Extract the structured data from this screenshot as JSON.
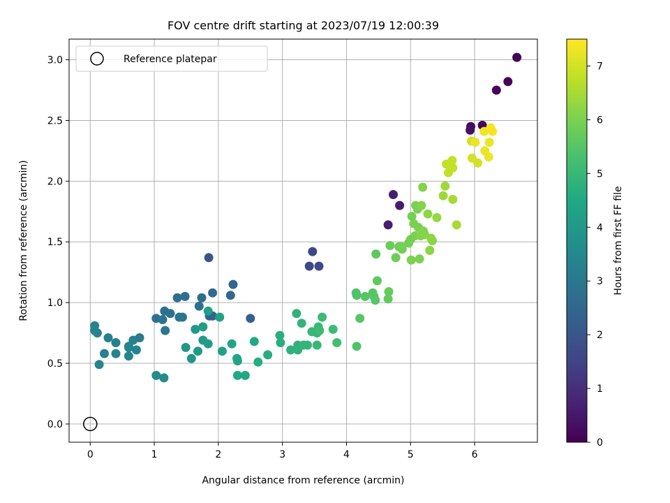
{
  "chart_data": {
    "type": "scatter",
    "title": "FOV centre drift starting at 2023/07/19 12:00:39",
    "xlabel": "Angular distance from reference (arcmin)",
    "ylabel": "Rotation from reference (arcmin)",
    "xlim": [
      -0.33,
      6.98
    ],
    "ylim": [
      -0.15,
      3.17
    ],
    "xticks": [
      0,
      1,
      2,
      3,
      4,
      5,
      6
    ],
    "xtick_labels": [
      "0",
      "1",
      "2",
      "3",
      "4",
      "5",
      "6"
    ],
    "yticks": [
      0.0,
      0.5,
      1.0,
      1.5,
      2.0,
      2.5,
      3.0
    ],
    "ytick_labels": [
      "0.0",
      "0.5",
      "1.0",
      "1.5",
      "2.0",
      "2.5",
      "3.0"
    ],
    "grid": true,
    "legend": {
      "position": "top-left",
      "entries": [
        "Reference platepar"
      ]
    },
    "reference_point": {
      "label": "Reference platepar",
      "x": 0,
      "y": 0
    },
    "colorbar": {
      "label": "Hours from first FF file",
      "colormap": "viridis",
      "range": [
        0,
        7.5
      ],
      "ticks": [
        0,
        1,
        2,
        3,
        4,
        5,
        6,
        7
      ],
      "tick_labels": [
        "0",
        "1",
        "2",
        "3",
        "4",
        "5",
        "6",
        "7"
      ],
      "colors": [
        "#440154",
        "#482475",
        "#414487",
        "#355f8d",
        "#2a788e",
        "#21918c",
        "#22a884",
        "#44bf70",
        "#7ad151",
        "#bddf26",
        "#fde725"
      ]
    },
    "series": [
      {
        "points": [
          [
            6.66,
            3.02,
            0.1
          ],
          [
            6.52,
            2.82,
            0.1
          ],
          [
            6.34,
            2.75,
            0.1
          ],
          [
            6.12,
            2.46,
            0.15
          ],
          [
            5.94,
            2.45,
            0.2
          ],
          [
            5.93,
            2.42,
            0.3
          ],
          [
            4.73,
            1.89,
            0.6
          ],
          [
            4.83,
            1.8,
            0.6
          ],
          [
            4.65,
            1.64,
            0.65
          ],
          [
            3.47,
            1.42,
            1.6
          ],
          [
            3.42,
            1.3,
            1.6
          ],
          [
            3.57,
            1.3,
            1.6
          ],
          [
            1.85,
            1.37,
            2.0
          ],
          [
            2.5,
            0.87,
            2.3
          ],
          [
            1.86,
            0.89,
            2.4
          ],
          [
            1.91,
            0.89,
            2.4
          ],
          [
            2.23,
            1.15,
            2.5
          ],
          [
            2.19,
            1.06,
            2.5
          ],
          [
            1.91,
            1.08,
            2.6
          ],
          [
            1.36,
            1.04,
            2.7
          ],
          [
            1.48,
            1.05,
            2.7
          ],
          [
            1.74,
            1.04,
            2.7
          ],
          [
            1.7,
            0.97,
            2.8
          ],
          [
            1.03,
            0.87,
            2.8
          ],
          [
            1.16,
            0.93,
            2.8
          ],
          [
            1.25,
            0.91,
            2.8
          ],
          [
            1.13,
            0.86,
            2.9
          ],
          [
            1.44,
            0.88,
            2.9
          ],
          [
            1.39,
            0.88,
            2.9
          ],
          [
            1.17,
            0.77,
            3.0
          ],
          [
            0.77,
            0.71,
            3.1
          ],
          [
            0.67,
            0.69,
            3.2
          ],
          [
            0.6,
            0.64,
            3.2
          ],
          [
            0.28,
            0.71,
            3.2
          ],
          [
            0.4,
            0.67,
            3.2
          ],
          [
            0.22,
            0.58,
            3.3
          ],
          [
            0.07,
            0.81,
            3.3
          ],
          [
            0.11,
            0.75,
            3.3
          ],
          [
            0.07,
            0.77,
            3.3
          ],
          [
            0.14,
            0.49,
            3.4
          ],
          [
            0.4,
            0.58,
            3.4
          ],
          [
            0.6,
            0.56,
            3.4
          ],
          [
            0.72,
            0.61,
            3.4
          ],
          [
            0.6,
            0.63,
            3.4
          ],
          [
            1.03,
            0.4,
            3.6
          ],
          [
            1.15,
            0.38,
            3.6
          ],
          [
            1.49,
            0.63,
            3.9
          ],
          [
            1.58,
            0.54,
            3.9
          ],
          [
            1.68,
            0.6,
            4.0
          ],
          [
            1.64,
            0.78,
            4.0
          ],
          [
            1.76,
            0.8,
            4.1
          ],
          [
            1.76,
            0.69,
            4.1
          ],
          [
            1.84,
            0.66,
            4.1
          ],
          [
            1.84,
            0.93,
            4.2
          ],
          [
            2.02,
            0.88,
            4.3
          ],
          [
            2.06,
            0.6,
            4.3
          ],
          [
            2.21,
            0.66,
            4.4
          ],
          [
            2.29,
            0.54,
            4.4
          ],
          [
            2.3,
            0.52,
            4.4
          ],
          [
            2.3,
            0.4,
            4.5
          ],
          [
            2.42,
            0.4,
            4.5
          ],
          [
            2.56,
            0.68,
            4.5
          ],
          [
            2.62,
            0.51,
            4.6
          ],
          [
            2.77,
            0.57,
            4.6
          ],
          [
            2.96,
            0.73,
            4.7
          ],
          [
            2.97,
            0.67,
            4.7
          ],
          [
            3.13,
            0.61,
            4.8
          ],
          [
            3.22,
            0.91,
            4.8
          ],
          [
            3.24,
            0.65,
            4.8
          ],
          [
            3.24,
            0.61,
            4.8
          ],
          [
            3.3,
            0.83,
            4.9
          ],
          [
            3.33,
            0.65,
            4.9
          ],
          [
            3.39,
            0.65,
            4.9
          ],
          [
            3.46,
            0.76,
            5.0
          ],
          [
            3.54,
            0.65,
            5.0
          ],
          [
            3.54,
            0.75,
            5.0
          ],
          [
            3.56,
            0.8,
            5.0
          ],
          [
            3.58,
            0.77,
            5.1
          ],
          [
            3.62,
            0.88,
            5.1
          ],
          [
            3.79,
            0.78,
            5.1
          ],
          [
            3.85,
            0.67,
            5.2
          ],
          [
            4.16,
            0.64,
            5.4
          ],
          [
            4.15,
            1.08,
            5.4
          ],
          [
            4.16,
            1.06,
            5.4
          ],
          [
            4.21,
            0.87,
            5.5
          ],
          [
            4.29,
            1.05,
            5.5
          ],
          [
            4.41,
            1.08,
            5.5
          ],
          [
            4.43,
            1.05,
            5.5
          ],
          [
            4.45,
            1.02,
            5.5
          ],
          [
            4.46,
            1.4,
            5.6
          ],
          [
            4.48,
            1.18,
            5.6
          ],
          [
            4.65,
            1.03,
            5.7
          ],
          [
            4.66,
            1.09,
            5.7
          ],
          [
            4.68,
            1.47,
            5.8
          ],
          [
            4.77,
            1.37,
            5.8
          ],
          [
            4.82,
            1.46,
            5.8
          ],
          [
            4.86,
            1.46,
            5.9
          ],
          [
            4.87,
            1.44,
            5.9
          ],
          [
            4.97,
            1.49,
            5.9
          ],
          [
            5.0,
            1.52,
            5.9
          ],
          [
            5.02,
            1.71,
            5.9
          ],
          [
            5.01,
            1.35,
            6.0
          ],
          [
            5.05,
            1.65,
            6.0
          ],
          [
            5.07,
            1.55,
            6.0
          ],
          [
            5.08,
            1.8,
            6.0
          ],
          [
            5.11,
            1.77,
            6.0
          ],
          [
            5.12,
            1.62,
            6.0
          ],
          [
            5.14,
            1.36,
            6.0
          ],
          [
            5.17,
            1.8,
            6.1
          ],
          [
            5.16,
            1.55,
            6.1
          ],
          [
            5.19,
            1.95,
            6.1
          ],
          [
            5.19,
            1.57,
            6.1
          ],
          [
            5.2,
            1.59,
            6.1
          ],
          [
            5.22,
            1.56,
            6.1
          ],
          [
            5.27,
            1.73,
            6.2
          ],
          [
            5.3,
            1.43,
            6.2
          ],
          [
            5.32,
            1.53,
            6.2
          ],
          [
            5.34,
            1.51,
            6.2
          ],
          [
            5.41,
            1.7,
            6.3
          ],
          [
            5.51,
            1.88,
            6.4
          ],
          [
            5.54,
            1.96,
            6.4
          ],
          [
            5.66,
            1.85,
            6.5
          ],
          [
            5.72,
            1.64,
            6.5
          ],
          [
            5.56,
            2.14,
            6.8
          ],
          [
            5.59,
            2.07,
            6.8
          ],
          [
            5.65,
            2.17,
            6.8
          ],
          [
            5.66,
            2.11,
            6.8
          ],
          [
            5.95,
            2.33,
            7.0
          ],
          [
            5.96,
            2.19,
            7.0
          ],
          [
            6.05,
            2.15,
            7.0
          ],
          [
            6.01,
            2.32,
            7.3
          ],
          [
            6.15,
            2.41,
            7.3
          ],
          [
            6.16,
            2.25,
            7.3
          ],
          [
            6.22,
            2.2,
            7.3
          ],
          [
            6.23,
            2.32,
            7.3
          ],
          [
            6.25,
            2.43,
            7.4
          ],
          [
            6.25,
            2.44,
            7.4
          ],
          [
            6.28,
            2.41,
            7.4
          ]
        ]
      }
    ]
  }
}
